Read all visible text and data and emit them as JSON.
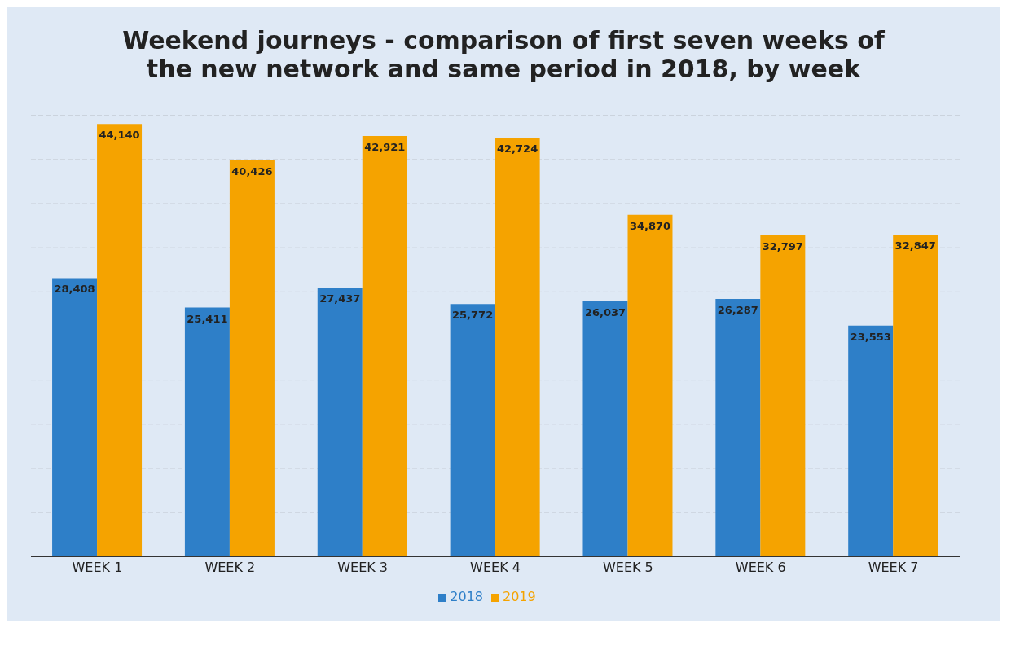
{
  "chart_data": {
    "type": "bar",
    "title": "Weekend journeys - comparison of first seven weeks of the new network and same period in 2018, by week",
    "categories": [
      "WEEK 1",
      "WEEK 2",
      "WEEK 3",
      "WEEK 4",
      "WEEK 5",
      "WEEK 6",
      "WEEK 7"
    ],
    "series": [
      {
        "name": "2018",
        "color": "#2e7fc8",
        "values": [
          28408,
          25411,
          27437,
          25772,
          26037,
          26287,
          23553
        ],
        "value_labels": [
          "28,408",
          "25,411",
          "27,437",
          "25,772",
          "26,037",
          "26,287",
          "23,553"
        ]
      },
      {
        "name": "2019",
        "color": "#f5a300",
        "values": [
          44140,
          40426,
          42921,
          42724,
          34870,
          32797,
          32847
        ],
        "value_labels": [
          "44,140",
          "40,426",
          "42,921",
          "42,724",
          "34,870",
          "32,797",
          "32,847"
        ]
      }
    ],
    "grid": "y",
    "legend": "bottom",
    "tick_labels": "x"
  }
}
